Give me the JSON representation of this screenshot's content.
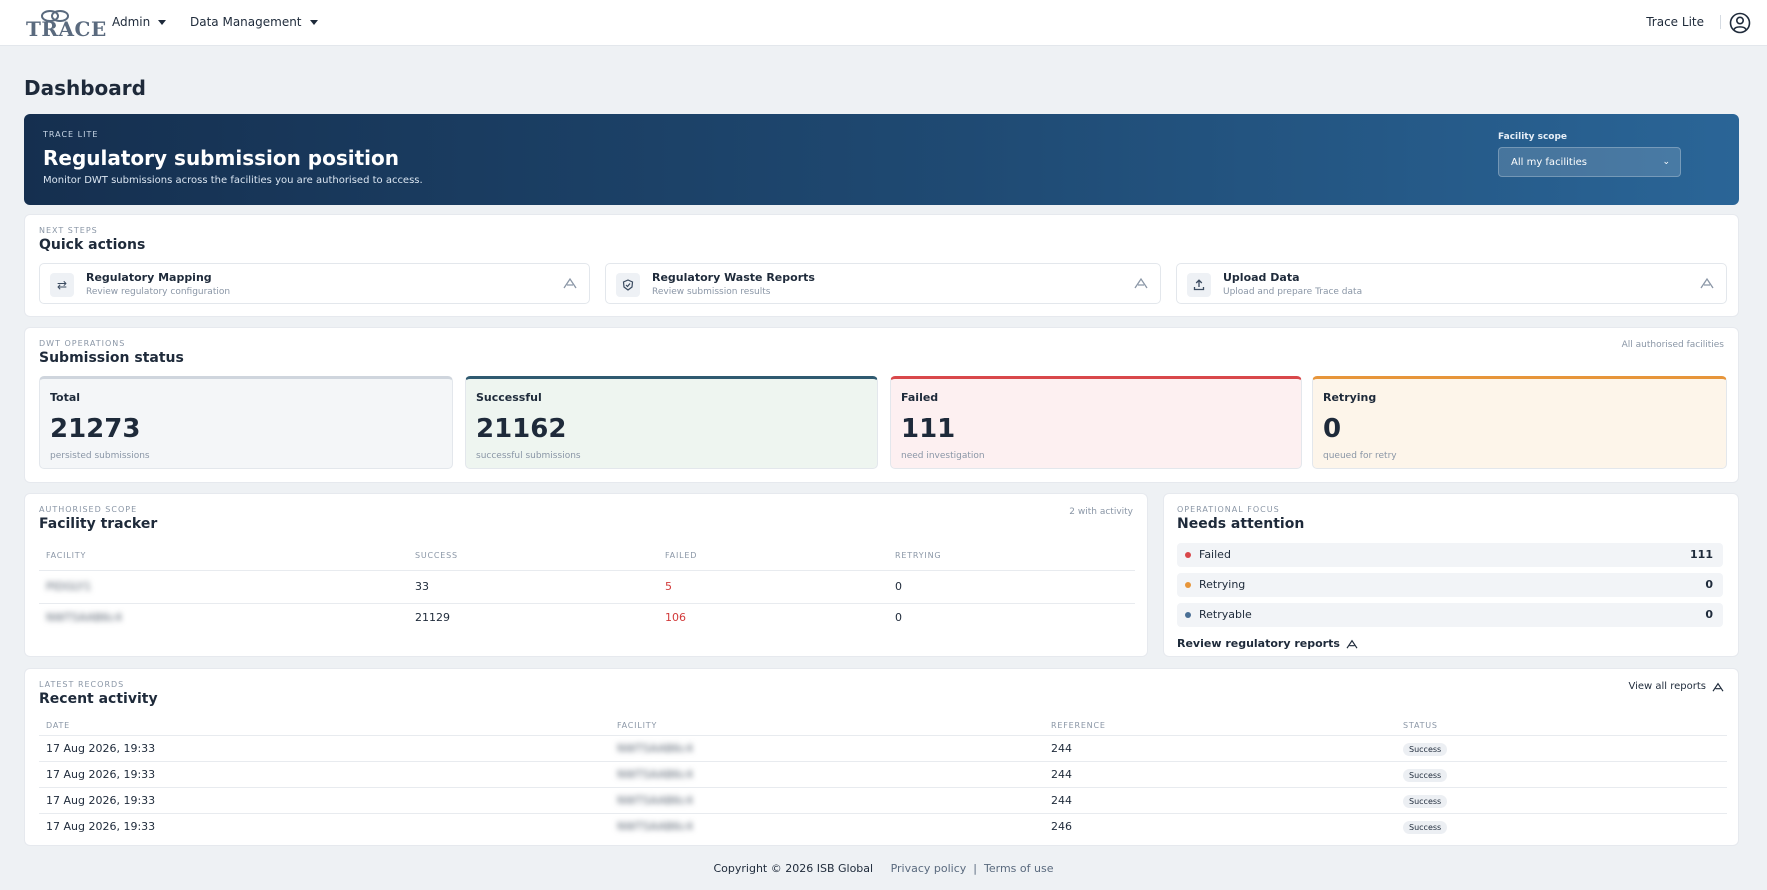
{
  "nav": {
    "logo": "TRACE",
    "admin": "Admin",
    "data_management": "Data Management",
    "product_label": "Trace Lite",
    "user_icon": "user-circle-icon"
  },
  "page": {
    "title": "Dashboard"
  },
  "hero": {
    "eyebrow": "TRACE LITE",
    "title": "Regulatory submission position",
    "subtitle": "Monitor DWT submissions across the facilities you are authorised to access.",
    "scope_label": "Facility scope",
    "scope_value": "All my facilities"
  },
  "quick_actions": {
    "eyebrow": "NEXT STEPS",
    "title": "Quick actions",
    "items": [
      {
        "title": "Regulatory Mapping",
        "subtitle": "Review regulatory configuration",
        "icon": "swap-arrows-icon"
      },
      {
        "title": "Regulatory Waste Reports",
        "subtitle": "Review submission results",
        "icon": "shield-check-icon"
      },
      {
        "title": "Upload Data",
        "subtitle": "Upload and prepare Trace data",
        "icon": "upload-icon"
      }
    ]
  },
  "submission_status": {
    "eyebrow": "DWT OPERATIONS",
    "title": "Submission status",
    "note": "All authorised facilities",
    "tiles": [
      {
        "label": "Total",
        "value": "21273",
        "sub": "persisted submissions",
        "color": "#cfd5dd",
        "bg": "#f4f6f8"
      },
      {
        "label": "Successful",
        "value": "21162",
        "sub": "successful submissions",
        "color": "#2f5a70",
        "bg": "#eef5f0"
      },
      {
        "label": "Failed",
        "value": "111",
        "sub": "need investigation",
        "color": "#d9474a",
        "bg": "#fdf0f1"
      },
      {
        "label": "Retrying",
        "value": "0",
        "sub": "queued for retry",
        "color": "#e7953a",
        "bg": "#fdf5ea"
      }
    ]
  },
  "facility_tracker": {
    "eyebrow": "AUTHORISED SCOPE",
    "title": "Facility tracker",
    "note": "2 with activity",
    "columns": [
      "FACILITY",
      "SUCCESS",
      "FAILED",
      "RETRYING"
    ],
    "rows": [
      {
        "facility": "PIDGLY1",
        "success": "33",
        "failed": "5",
        "retrying": "0"
      },
      {
        "facility": "NWTSAAB6c4",
        "success": "21129",
        "failed": "106",
        "retrying": "0"
      }
    ]
  },
  "needs_attention": {
    "eyebrow": "OPERATIONAL FOCUS",
    "title": "Needs attention",
    "items": [
      {
        "label": "Failed",
        "value": "111",
        "color": "#d9474a"
      },
      {
        "label": "Retrying",
        "value": "0",
        "color": "#e7953a"
      },
      {
        "label": "Retryable",
        "value": "0",
        "color": "#4a6f95"
      }
    ],
    "link": "Review regulatory reports"
  },
  "recent_activity": {
    "eyebrow": "LATEST RECORDS",
    "title": "Recent activity",
    "view_all": "View all reports",
    "columns": [
      "DATE",
      "FACILITY",
      "REFERENCE",
      "STATUS"
    ],
    "rows": [
      {
        "date": "17 Aug 2026, 19:33",
        "facility": "NWTSAAB6c4",
        "reference": "244",
        "status": "Success"
      },
      {
        "date": "17 Aug 2026, 19:33",
        "facility": "NWTSAAB6c4",
        "reference": "244",
        "status": "Success"
      },
      {
        "date": "17 Aug 2026, 19:33",
        "facility": "NWTSAAB6c4",
        "reference": "244",
        "status": "Success"
      },
      {
        "date": "17 Aug 2026, 19:33",
        "facility": "NWTSAAB6c4",
        "reference": "246",
        "status": "Success"
      }
    ]
  },
  "footer": {
    "copyright": "Copyright © 2026 ISB Global",
    "privacy": "Privacy policy",
    "separator": "|",
    "terms": "Terms of use"
  }
}
